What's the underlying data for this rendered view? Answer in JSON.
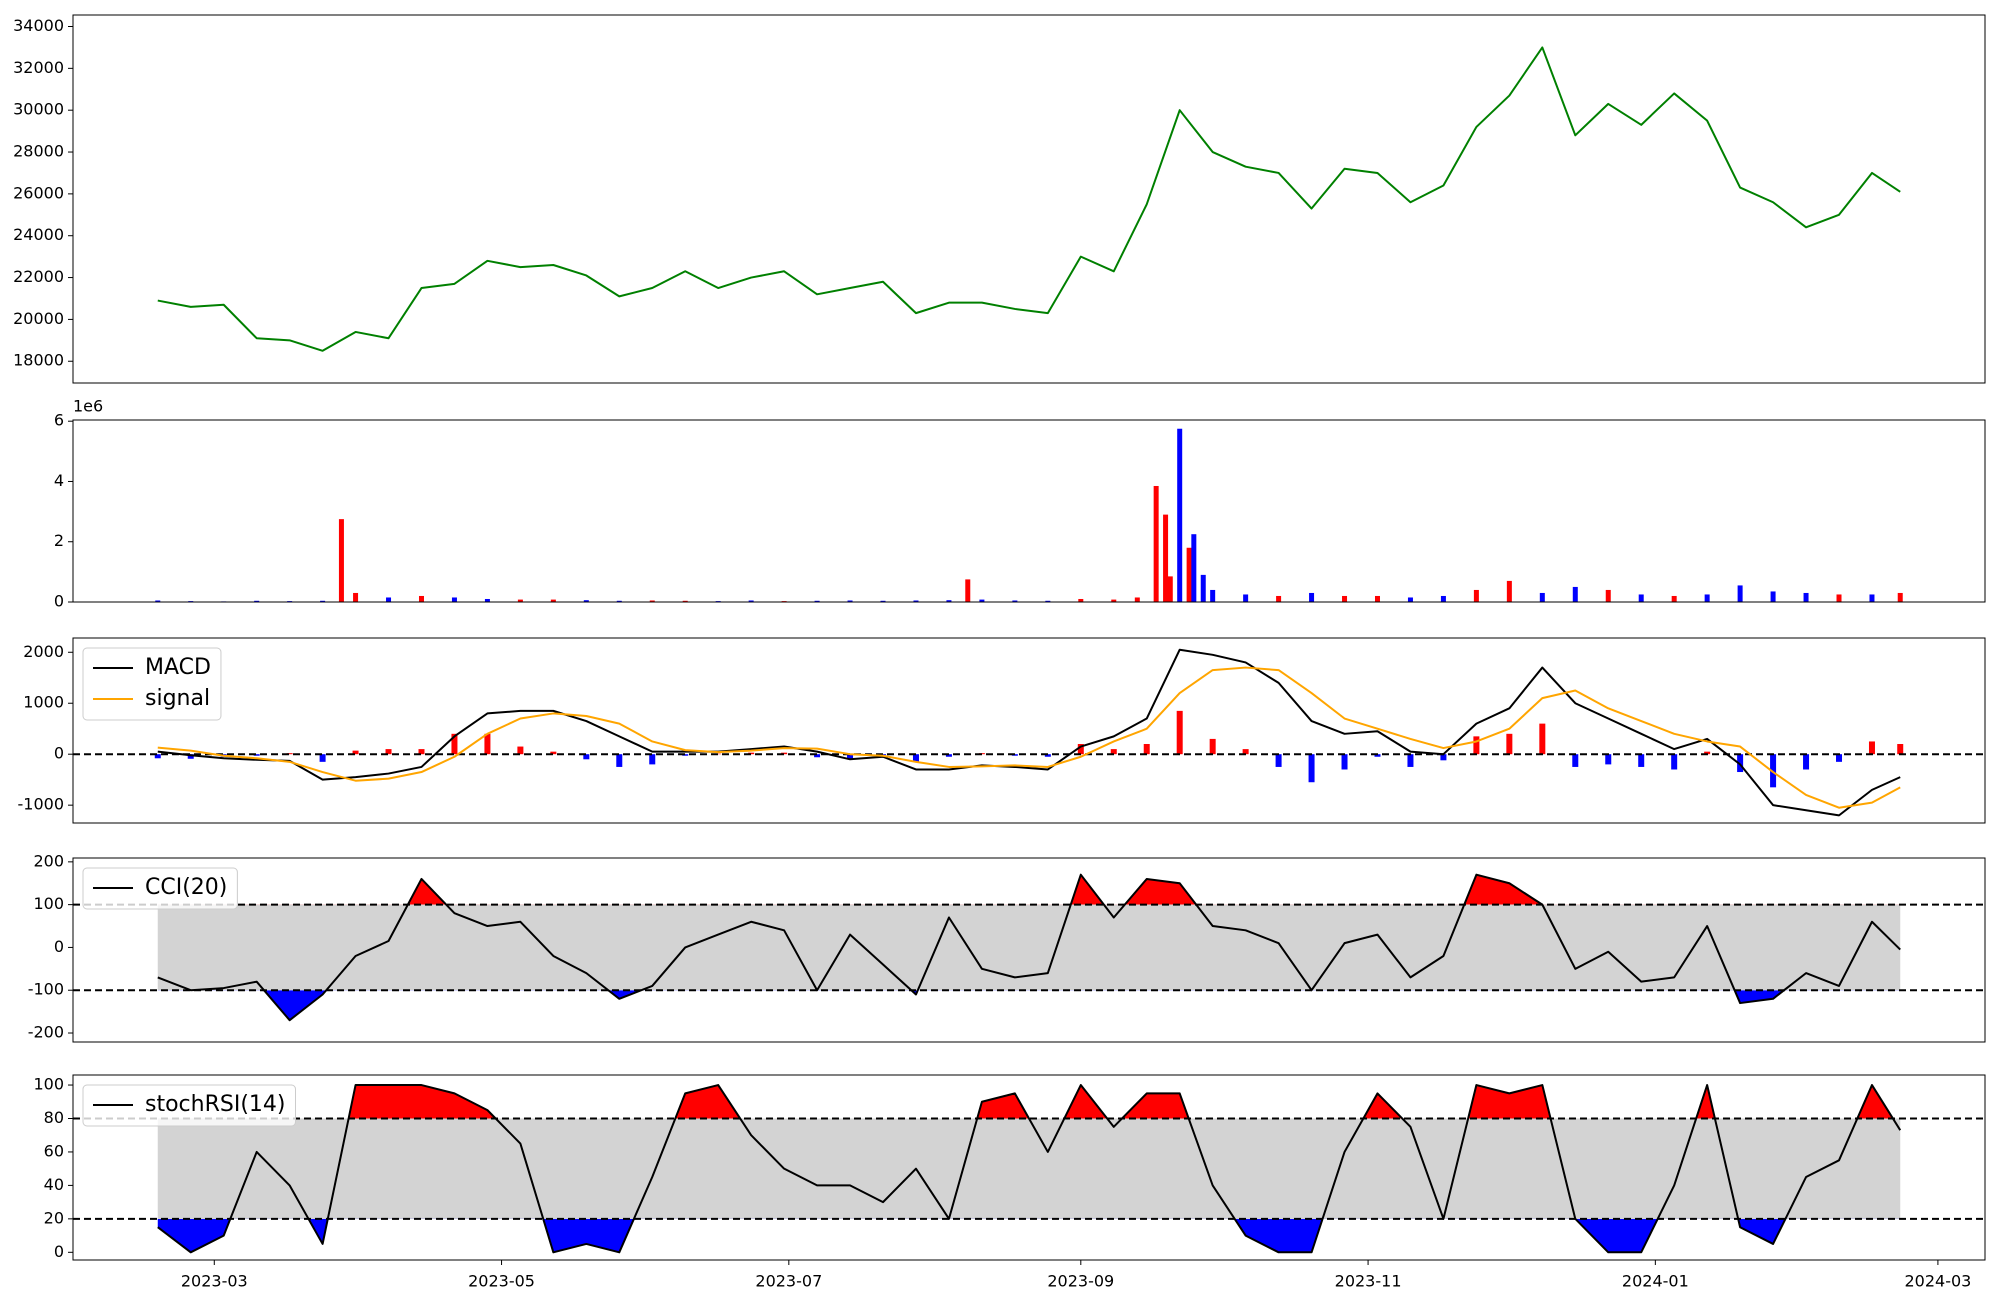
{
  "chart_data": [
    {
      "type": "line",
      "xlim": [
        -30,
        376
      ],
      "ylim": [
        16960,
        34550
      ],
      "yticks": [
        18000,
        20000,
        22000,
        24000,
        26000,
        28000,
        30000,
        32000,
        34000
      ],
      "x": [
        -12,
        -5,
        2,
        9,
        16,
        23,
        30,
        37,
        44,
        51,
        58,
        65,
        72,
        79,
        86,
        93,
        100,
        107,
        114,
        121,
        128,
        135,
        142,
        149,
        156,
        163,
        170,
        177,
        184,
        191,
        198,
        205,
        212,
        219,
        226,
        233,
        240,
        247,
        254,
        261,
        268,
        275,
        282,
        289,
        296,
        303,
        310,
        317,
        324,
        331,
        338,
        345,
        352,
        358
      ],
      "series": [
        {
          "color": "green",
          "values": [
            20900,
            20600,
            20700,
            19100,
            19000,
            18500,
            19400,
            19100,
            21500,
            21700,
            22800,
            22500,
            22600,
            22100,
            21100,
            21500,
            22300,
            21500,
            22000,
            22300,
            21200,
            21500,
            21800,
            20300,
            20800,
            20800,
            20500,
            20300,
            23000,
            22300,
            25500,
            30000,
            28000,
            27300,
            27000,
            25300,
            27200,
            27000,
            25600,
            26400,
            29200,
            30700,
            33000,
            28800,
            30300,
            29300,
            30800,
            29500,
            26300,
            25600,
            24400,
            25000,
            27000,
            26100
          ]
        }
      ]
    },
    {
      "type": "bar",
      "xlim": [
        -30,
        376
      ],
      "ylim": [
        0,
        6040000
      ],
      "offset_text": "1e6",
      "yticks": [
        {
          "value": 0,
          "label": "0"
        },
        {
          "value": 2000000,
          "label": "2"
        },
        {
          "value": 4000000,
          "label": "4"
        },
        {
          "value": 6000000,
          "label": "6"
        }
      ],
      "x": [
        -12,
        -5,
        2,
        9,
        16,
        23,
        27,
        30,
        37,
        44,
        51,
        58,
        65,
        72,
        79,
        86,
        93,
        100,
        107,
        114,
        121,
        128,
        135,
        142,
        149,
        156,
        160,
        163,
        170,
        177,
        184,
        191,
        196,
        200,
        202,
        203,
        205,
        207,
        208,
        210,
        212,
        219,
        226,
        233,
        240,
        247,
        254,
        261,
        268,
        275,
        282,
        289,
        296,
        303,
        310,
        317,
        324,
        331,
        338,
        345,
        352,
        358
      ],
      "values": [
        50000,
        30000,
        20000,
        40000,
        30000,
        40000,
        2750000,
        300000,
        150000,
        200000,
        150000,
        100000,
        80000,
        80000,
        60000,
        40000,
        50000,
        40000,
        30000,
        50000,
        30000,
        40000,
        50000,
        40000,
        50000,
        60000,
        750000,
        80000,
        50000,
        40000,
        100000,
        80000,
        150000,
        3850000,
        2900000,
        850000,
        5750000,
        1800000,
        2250000,
        900000,
        400000,
        250000,
        200000,
        300000,
        200000,
        200000,
        150000,
        200000,
        400000,
        700000,
        300000,
        500000,
        400000,
        250000,
        200000,
        250000,
        550000,
        350000,
        300000,
        250000,
        250000,
        300000
      ],
      "colors": [
        "blue",
        "blue",
        "blue",
        "blue",
        "blue",
        "blue",
        "red",
        "red",
        "blue",
        "red",
        "blue",
        "blue",
        "red",
        "red",
        "blue",
        "blue",
        "red",
        "red",
        "blue",
        "blue",
        "red",
        "blue",
        "blue",
        "blue",
        "blue",
        "blue",
        "red",
        "blue",
        "blue",
        "blue",
        "red",
        "red",
        "red",
        "red",
        "red",
        "red",
        "blue",
        "red",
        "blue",
        "blue",
        "blue",
        "blue",
        "red",
        "blue",
        "red",
        "red",
        "blue",
        "blue",
        "red",
        "red",
        "blue",
        "blue",
        "red",
        "blue",
        "red",
        "blue",
        "blue",
        "blue",
        "blue",
        "red",
        "blue",
        "red"
      ]
    },
    {
      "type": "line",
      "xlim": [
        -30,
        376
      ],
      "ylim": [
        -1350,
        2280
      ],
      "yticks": [
        -1000,
        0,
        1000,
        2000
      ],
      "hline": 0,
      "x": [
        -12,
        -5,
        2,
        9,
        16,
        23,
        30,
        37,
        44,
        51,
        58,
        65,
        72,
        79,
        86,
        93,
        100,
        107,
        114,
        121,
        128,
        135,
        142,
        149,
        156,
        163,
        170,
        177,
        184,
        191,
        198,
        205,
        212,
        219,
        226,
        233,
        240,
        247,
        254,
        261,
        268,
        275,
        282,
        289,
        296,
        303,
        310,
        317,
        324,
        331,
        338,
        345,
        352,
        358
      ],
      "histogram": {
        "up_color": "red",
        "down_color": "blue",
        "values": [
          -80,
          -90,
          -50,
          -30,
          20,
          -150,
          70,
          100,
          100,
          400,
          400,
          150,
          50,
          -100,
          -250,
          -200,
          -30,
          10,
          30,
          30,
          -60,
          -100,
          -20,
          -150,
          -50,
          20,
          -30,
          -50,
          200,
          100,
          200,
          850,
          300,
          100,
          -250,
          -550,
          -300,
          -50,
          -250,
          -120,
          350,
          400,
          600,
          -250,
          -200,
          -250,
          -300,
          50,
          -350,
          -650,
          -300,
          -150,
          250,
          200
        ]
      },
      "series": [
        {
          "name": "MACD",
          "color": "black",
          "values": [
            50,
            -20,
            -80,
            -110,
            -130,
            -500,
            -450,
            -380,
            -250,
            350,
            800,
            850,
            850,
            650,
            350,
            50,
            50,
            50,
            100,
            150,
            50,
            -100,
            -50,
            -300,
            -300,
            -220,
            -250,
            -300,
            150,
            350,
            700,
            2050,
            1950,
            1800,
            1400,
            650,
            400,
            450,
            50,
            0,
            600,
            900,
            1700,
            1000,
            700,
            400,
            100,
            300,
            -200,
            -1000,
            -1100,
            -1200,
            -700,
            -450
          ]
        },
        {
          "name": "signal",
          "color": "orange",
          "values": [
            130,
            70,
            -30,
            -80,
            -150,
            -350,
            -520,
            -480,
            -350,
            -50,
            400,
            700,
            800,
            750,
            600,
            250,
            80,
            40,
            70,
            120,
            110,
            0,
            -30,
            -150,
            -250,
            -240,
            -220,
            -250,
            -50,
            250,
            500,
            1200,
            1650,
            1700,
            1650,
            1200,
            700,
            500,
            300,
            120,
            250,
            500,
            1100,
            1250,
            900,
            650,
            400,
            250,
            150,
            -350,
            -800,
            -1050,
            -950,
            -650
          ]
        }
      ]
    },
    {
      "type": "band",
      "xlim": [
        -30,
        376
      ],
      "ylim": [
        -221,
        209
      ],
      "yticks": [
        -200,
        -100,
        0,
        100,
        200
      ],
      "bands": [
        -100,
        100
      ],
      "band_color": "lightgray",
      "above_color": "red",
      "below_color": "blue",
      "x": [
        -12,
        -5,
        2,
        9,
        16,
        23,
        30,
        37,
        44,
        51,
        58,
        65,
        72,
        79,
        86,
        93,
        100,
        107,
        114,
        121,
        128,
        135,
        142,
        149,
        156,
        163,
        170,
        177,
        184,
        191,
        198,
        205,
        212,
        219,
        226,
        233,
        240,
        247,
        254,
        261,
        268,
        275,
        282,
        289,
        296,
        303,
        310,
        317,
        324,
        331,
        338,
        345,
        352,
        358
      ],
      "series": [
        {
          "name": "CCI(20)",
          "color": "black",
          "values": [
            -70,
            -100,
            -95,
            -80,
            -170,
            -110,
            -20,
            15,
            160,
            80,
            50,
            60,
            -20,
            -60,
            -120,
            -90,
            0,
            30,
            60,
            40,
            -100,
            30,
            -40,
            -110,
            70,
            -50,
            -70,
            -60,
            170,
            70,
            160,
            150,
            50,
            40,
            10,
            -100,
            10,
            30,
            -70,
            -20,
            170,
            150,
            100,
            -50,
            -10,
            -80,
            -70,
            50,
            -130,
            -120,
            -60,
            -90,
            60,
            -5
          ]
        }
      ]
    },
    {
      "type": "band",
      "xlim": [
        -30,
        376
      ],
      "ylim": [
        -4.6,
        106
      ],
      "yticks": [
        0,
        20,
        40,
        60,
        80,
        100
      ],
      "xticks": [
        {
          "value": 0,
          "label": "2023-03"
        },
        {
          "value": 61,
          "label": "2023-05"
        },
        {
          "value": 122,
          "label": "2023-07"
        },
        {
          "value": 184,
          "label": "2023-09"
        },
        {
          "value": 245,
          "label": "2023-11"
        },
        {
          "value": 306,
          "label": "2024-01"
        },
        {
          "value": 366,
          "label": "2024-03"
        }
      ],
      "bands": [
        20,
        80
      ],
      "band_color": "lightgray",
      "above_color": "red",
      "below_color": "blue",
      "x": [
        -12,
        -5,
        2,
        9,
        16,
        23,
        30,
        37,
        44,
        51,
        58,
        65,
        72,
        79,
        86,
        93,
        100,
        107,
        114,
        121,
        128,
        135,
        142,
        149,
        156,
        163,
        170,
        177,
        184,
        191,
        198,
        205,
        212,
        219,
        226,
        233,
        240,
        247,
        254,
        261,
        268,
        275,
        282,
        289,
        296,
        303,
        310,
        317,
        324,
        331,
        338,
        345,
        352,
        358
      ],
      "series": [
        {
          "name": "stochRSI(14)",
          "color": "black",
          "values": [
            15,
            0,
            10,
            60,
            40,
            5,
            100,
            100,
            100,
            95,
            85,
            65,
            0,
            5,
            0,
            45,
            95,
            100,
            70,
            50,
            40,
            40,
            30,
            50,
            20,
            90,
            95,
            60,
            100,
            75,
            95,
            95,
            40,
            10,
            0,
            0,
            60,
            95,
            75,
            20,
            100,
            95,
            100,
            20,
            0,
            0,
            40,
            100,
            15,
            5,
            45,
            55,
            100,
            73
          ]
        }
      ]
    }
  ]
}
